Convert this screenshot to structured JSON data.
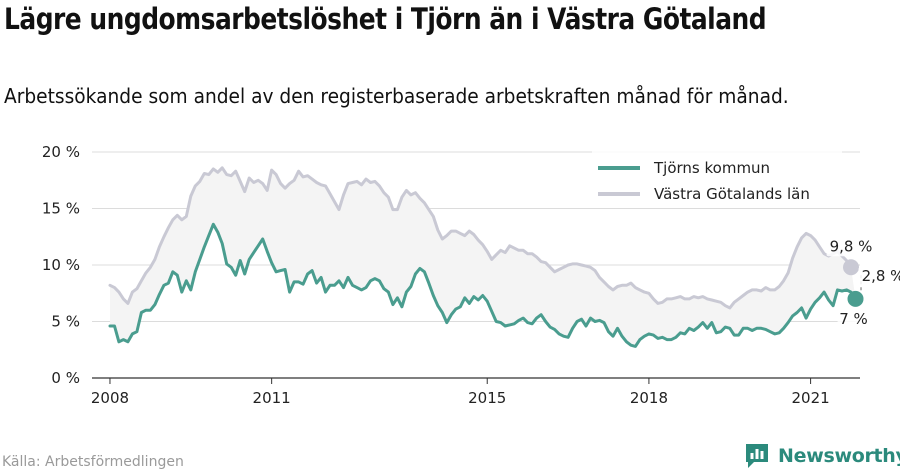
{
  "title": "Lägre ungdomsarbetslöshet i Tjörn än i Västra Götaland",
  "subtitle": "Arbetssökande som andel av den registerbaserade arbetskraften månad för månad.",
  "source": "Källa: Arbetsförmedlingen",
  "brand": "Newsworthy",
  "colors": {
    "tjorn": "#4a9d8f",
    "vg": "#c9c9d4",
    "band": "#f4f4f4",
    "grid": "#dcdcdc",
    "brand": "#2b8a7c"
  },
  "chart_data": {
    "type": "line",
    "x_ticks": [
      "2008",
      "2011",
      "2015",
      "2018",
      "2021"
    ],
    "y_ticks": [
      "0 %",
      "5 %",
      "10 %",
      "15 %",
      "20 %"
    ],
    "ylim": [
      0,
      20
    ],
    "xlim": [
      "2007-09",
      "2021-12"
    ],
    "legend_position": "top-right",
    "grid": true,
    "annotations": {
      "vg_last": "9,8 %",
      "tjorn_last": "7 %",
      "difference": "2,8 %"
    },
    "series": [
      {
        "name": "Tjörns kommun",
        "key": "tjorn",
        "start": "2008-01",
        "values": [
          4.6,
          4.6,
          3.2,
          3.4,
          3.2,
          3.9,
          4.1,
          5.8,
          6.0,
          6.0,
          6.5,
          7.4,
          8.2,
          8.4,
          9.4,
          9.1,
          7.6,
          8.6,
          7.8,
          9.4,
          10.5,
          11.6,
          12.6,
          13.6,
          12.9,
          11.9,
          10.1,
          9.8,
          9.1,
          10.4,
          9.2,
          10.5,
          11.1,
          11.7,
          12.3,
          11.2,
          10.2,
          9.4,
          9.5,
          9.6,
          7.6,
          8.5,
          8.5,
          8.3,
          9.2,
          9.5,
          8.4,
          8.9,
          7.6,
          8.2,
          8.2,
          8.6,
          8.0,
          8.9,
          8.2,
          8.0,
          7.8,
          8.0,
          8.6,
          8.8,
          8.6,
          7.9,
          7.6,
          6.5,
          7.1,
          6.3,
          7.6,
          8.1,
          9.2,
          9.7,
          9.4,
          8.4,
          7.3,
          6.4,
          5.8,
          4.9,
          5.6,
          6.1,
          6.3,
          7.1,
          6.6,
          7.2,
          6.9,
          7.3,
          6.8,
          5.9,
          5.0,
          4.9,
          4.6,
          4.7,
          4.8,
          5.1,
          5.3,
          4.9,
          4.8,
          5.3,
          5.6,
          5.0,
          4.5,
          4.3,
          3.9,
          3.7,
          3.6,
          4.4,
          5.0,
          5.2,
          4.6,
          5.3,
          5.0,
          5.1,
          4.9,
          4.1,
          3.7,
          4.4,
          3.7,
          3.2,
          2.9,
          2.8,
          3.4,
          3.7,
          3.9,
          3.8,
          3.5,
          3.6,
          3.4,
          3.4,
          3.6,
          4.0,
          3.9,
          4.4,
          4.2,
          4.5,
          4.9,
          4.4,
          4.9,
          4.0,
          4.1,
          4.5,
          4.4,
          3.8,
          3.8,
          4.4,
          4.4,
          4.2,
          4.4,
          4.4,
          4.3,
          4.1,
          3.9,
          4.0,
          4.4,
          4.9,
          5.5,
          5.8,
          6.2,
          5.3,
          6.1,
          6.7,
          7.1,
          7.6,
          6.9,
          6.4,
          7.8,
          7.7,
          7.8,
          7.6,
          7.0
        ]
      },
      {
        "name": "Västra Götalands län",
        "key": "vg",
        "start": "2008-01",
        "values": [
          8.2,
          8.0,
          7.6,
          7.0,
          6.6,
          7.6,
          7.9,
          8.6,
          9.3,
          9.8,
          10.5,
          11.6,
          12.5,
          13.3,
          14.0,
          14.4,
          14.0,
          14.3,
          16.1,
          17.0,
          17.4,
          18.1,
          18.0,
          18.5,
          18.2,
          18.6,
          18.0,
          17.9,
          18.3,
          17.4,
          16.5,
          17.7,
          17.3,
          17.5,
          17.2,
          16.6,
          18.4,
          18.0,
          17.2,
          16.8,
          17.2,
          17.5,
          18.3,
          17.8,
          17.9,
          17.6,
          17.3,
          17.1,
          17.0,
          16.3,
          15.6,
          14.9,
          16.2,
          17.2,
          17.3,
          17.4,
          17.1,
          17.6,
          17.3,
          17.4,
          17.0,
          16.4,
          16.0,
          14.9,
          14.9,
          16.0,
          16.6,
          16.2,
          16.4,
          15.9,
          15.5,
          14.9,
          14.3,
          13.1,
          12.3,
          12.6,
          13.0,
          13.0,
          12.8,
          12.6,
          13.0,
          12.7,
          12.2,
          11.8,
          11.2,
          10.5,
          10.9,
          11.3,
          11.1,
          11.7,
          11.5,
          11.3,
          11.3,
          11.0,
          11.0,
          10.7,
          10.3,
          10.2,
          9.8,
          9.4,
          9.6,
          9.8,
          10.0,
          10.1,
          10.1,
          10.0,
          9.9,
          9.8,
          9.5,
          8.9,
          8.5,
          8.1,
          7.8,
          8.1,
          8.2,
          8.2,
          8.4,
          8.0,
          7.8,
          7.6,
          7.5,
          7.0,
          6.6,
          6.7,
          7.0,
          7.0,
          7.1,
          7.2,
          7.0,
          7.0,
          7.2,
          7.1,
          7.2,
          7.0,
          6.9,
          6.8,
          6.7,
          6.4,
          6.2,
          6.7,
          7.0,
          7.3,
          7.6,
          7.8,
          7.8,
          7.7,
          8.0,
          7.8,
          7.8,
          8.1,
          8.6,
          9.3,
          10.6,
          11.6,
          12.4,
          12.8,
          12.6,
          12.2,
          11.6,
          11.0,
          10.8,
          11.0,
          11.2,
          10.8,
          10.4,
          9.8
        ]
      }
    ]
  }
}
